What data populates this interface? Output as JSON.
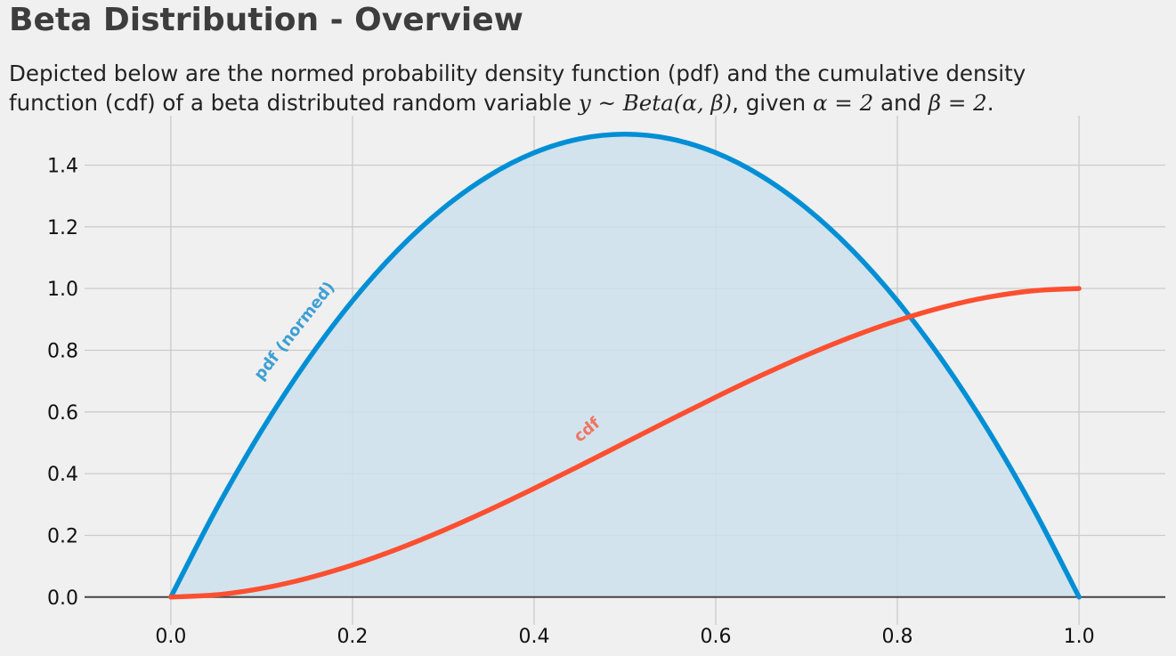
{
  "title": "Beta Distribution - Overview",
  "subtitle": {
    "line1": "Depicted below are the normed probability density function (pdf) and the cumulative density",
    "line2_a": "function (cdf) of a beta distributed random variable ",
    "math_y": "y ~ Beta(α, β)",
    "line2_b": ", given ",
    "math_alpha": "α = 2",
    "line2_c": " and ",
    "math_beta": "β = 2",
    "line2_d": "."
  },
  "colors": {
    "pdf": "#008fd5",
    "cdf": "#fc4f30",
    "fill": "#cde1ec",
    "grid": "#cbcbcb",
    "background": "#f0f0f0"
  },
  "chart_data": {
    "type": "line",
    "title": "Beta Distribution - Overview",
    "xlabel": "",
    "ylabel": "",
    "xlim": [
      -0.095,
      1.095
    ],
    "ylim": [
      -0.09,
      1.56
    ],
    "x_ticks": [
      0.0,
      0.2,
      0.4,
      0.6,
      0.8,
      1.0
    ],
    "x_tick_labels": [
      "0.0",
      "0.2",
      "0.4",
      "0.6",
      "0.8",
      "1.0"
    ],
    "y_ticks": [
      0.0,
      0.2,
      0.4,
      0.6,
      0.8,
      1.0,
      1.2,
      1.4
    ],
    "y_tick_labels": [
      "0.0",
      "0.2",
      "0.4",
      "0.6",
      "0.8",
      "1.0",
      "1.2",
      "1.4"
    ],
    "grid": true,
    "params": {
      "alpha": 2,
      "beta": 2
    },
    "x": [
      0.0,
      0.05,
      0.1,
      0.15,
      0.2,
      0.25,
      0.3,
      0.35,
      0.4,
      0.45,
      0.5,
      0.55,
      0.6,
      0.65,
      0.7,
      0.75,
      0.8,
      0.85,
      0.9,
      0.95,
      1.0
    ],
    "series": [
      {
        "name": "pdf (normed)",
        "fill": true,
        "values": [
          0.0,
          0.285,
          0.54,
          0.765,
          0.96,
          1.125,
          1.26,
          1.365,
          1.44,
          1.485,
          1.5,
          1.485,
          1.44,
          1.365,
          1.26,
          1.125,
          0.96,
          0.765,
          0.54,
          0.285,
          0.0
        ]
      },
      {
        "name": "cdf",
        "fill": false,
        "values": [
          0.0,
          0.00725,
          0.028,
          0.06075,
          0.104,
          0.15625,
          0.216,
          0.28175,
          0.352,
          0.42525,
          0.5,
          0.57475,
          0.648,
          0.71825,
          0.784,
          0.84375,
          0.896,
          0.93925,
          0.972,
          0.99275,
          1.0
        ]
      }
    ],
    "annotations": [
      {
        "text": "pdf (normed)",
        "series": "pdf (normed)",
        "x": 0.1,
        "y": 0.7
      },
      {
        "text": "cdf",
        "series": "cdf",
        "x": 0.45,
        "y": 0.5
      }
    ]
  }
}
